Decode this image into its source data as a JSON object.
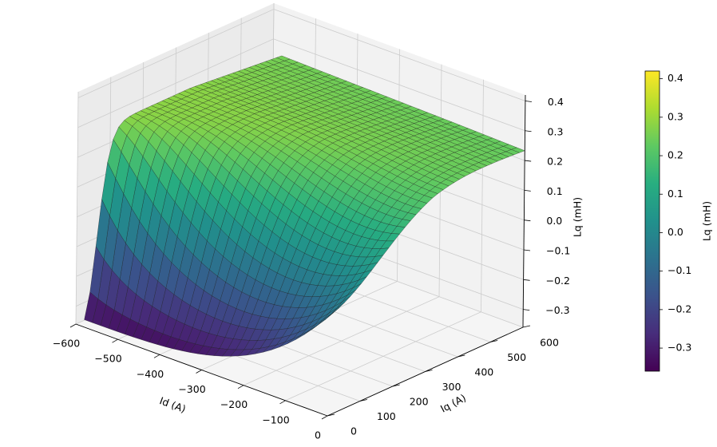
{
  "chart_data": {
    "type": "surface3d",
    "title": "",
    "xlabel": "Id (A)",
    "ylabel": "Iq (A)",
    "zlabel": "Lq (mH)",
    "colorbar_label": "Lq (mH)",
    "colormap": "viridis",
    "grid": true,
    "x_ticks": [
      "−600",
      "−500",
      "−400",
      "−300",
      "−200",
      "−100",
      "0"
    ],
    "y_ticks": [
      "0",
      "100",
      "200",
      "300",
      "400",
      "500",
      "600"
    ],
    "z_ticks": [
      "−0.3",
      "−0.2",
      "−0.1",
      "0.0",
      "0.1",
      "0.2",
      "0.3",
      "0.4"
    ],
    "colorbar_ticks": [
      "−0.3",
      "−0.2",
      "−0.1",
      "0.0",
      "0.1",
      "0.2",
      "0.3",
      "0.4"
    ],
    "xlim": [
      -600,
      0
    ],
    "ylim": [
      0,
      600
    ],
    "zlim": [
      -0.36,
      0.42
    ],
    "colorbar_range": [
      -0.36,
      0.42
    ],
    "surface_samples": [
      {
        "id": -580,
        "iq": 0,
        "lq": -0.33
      },
      {
        "id": -580,
        "iq": 100,
        "lq": -0.02
      },
      {
        "id": -580,
        "iq": 300,
        "lq": 0.28
      },
      {
        "id": -580,
        "iq": 600,
        "lq": 0.22
      },
      {
        "id": -300,
        "iq": 0,
        "lq": -0.32
      },
      {
        "id": -300,
        "iq": 200,
        "lq": 0.27
      },
      {
        "id": -300,
        "iq": 600,
        "lq": 0.23
      },
      {
        "id": 0,
        "iq": 0,
        "lq": -0.02
      },
      {
        "id": 0,
        "iq": 300,
        "lq": 0.26
      },
      {
        "id": 0,
        "iq": 600,
        "lq": 0.22
      }
    ]
  }
}
